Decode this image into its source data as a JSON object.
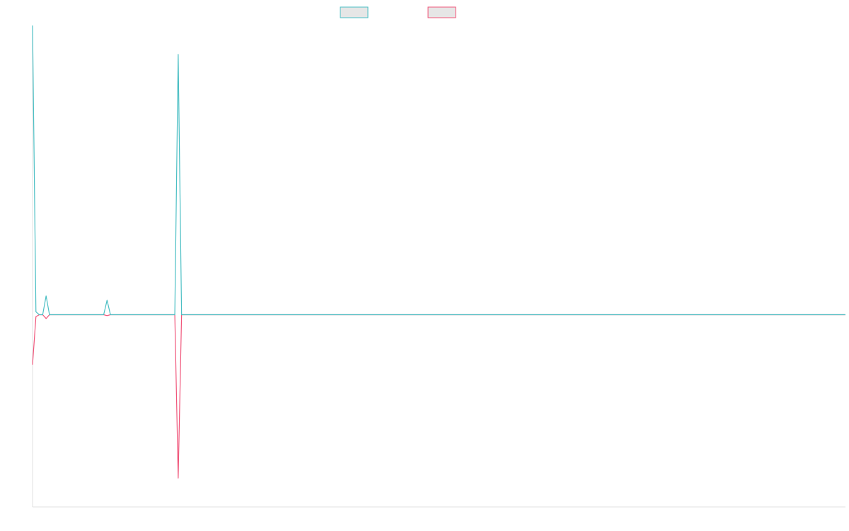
{
  "chart_data": {
    "type": "line",
    "title": "",
    "xlabel": "",
    "ylabel": "",
    "grid": false,
    "legend_position": "top",
    "x_count": 240,
    "ylim": [
      -1.0,
      0.82
    ],
    "series": [
      {
        "color": "#4bbfc4",
        "fill": "#e6e6e6",
        "points": [
          [
            0,
            1.0
          ],
          [
            1,
            0.01
          ],
          [
            2,
            0.0
          ],
          [
            3,
            0.0
          ],
          [
            4,
            0.065
          ],
          [
            5,
            0.0
          ],
          [
            6,
            0.0
          ],
          [
            10,
            0.0
          ],
          [
            21,
            0.0
          ],
          [
            22,
            0.05
          ],
          [
            23,
            0.0
          ],
          [
            42,
            0.0
          ],
          [
            43,
            0.9
          ],
          [
            44,
            0.0
          ],
          [
            240,
            0.0
          ]
        ]
      },
      {
        "color": "#f0557a",
        "fill": "#e6e6e6",
        "points": [
          [
            0,
            -0.26
          ],
          [
            1,
            -0.01
          ],
          [
            2,
            0.0
          ],
          [
            3,
            0.0
          ],
          [
            4,
            -0.02
          ],
          [
            5,
            0.0
          ],
          [
            6,
            0.0
          ],
          [
            10,
            0.0
          ],
          [
            21,
            0.0
          ],
          [
            22,
            -0.005
          ],
          [
            23,
            0.0
          ],
          [
            42,
            0.0
          ],
          [
            43,
            -0.85
          ],
          [
            44,
            0.0
          ],
          [
            240,
            0.0
          ]
        ]
      }
    ]
  }
}
